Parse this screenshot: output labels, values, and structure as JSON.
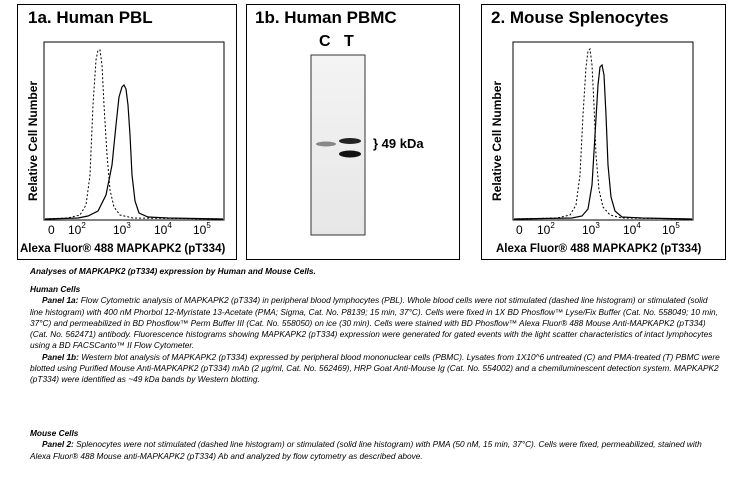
{
  "figure": {
    "panel1a": {
      "title": "1a.  Human PBL",
      "ylabel": "Relative Cell Number",
      "xlabel": "Alexa Fluor® 488 MAPKAPK2 (pT334)",
      "ticks": [
        {
          "base": "0",
          "exp": ""
        },
        {
          "base": "10",
          "exp": "2"
        },
        {
          "base": "10",
          "exp": "3"
        },
        {
          "base": "10",
          "exp": "4"
        },
        {
          "base": "10",
          "exp": "5"
        }
      ]
    },
    "panel1b": {
      "title": "1b. Human PBMC",
      "lane_c": "C",
      "lane_t": "T",
      "band_label": "} 49 kDa"
    },
    "panel2": {
      "title": "2. Mouse Splenocytes",
      "ylabel": "Relative Cell Number",
      "xlabel": "Alexa Fluor® 488 MAPKAPK2 (pT334)",
      "ticks": [
        {
          "base": "0",
          "exp": ""
        },
        {
          "base": "10",
          "exp": "2"
        },
        {
          "base": "10",
          "exp": "3"
        },
        {
          "base": "10",
          "exp": "4"
        },
        {
          "base": "10",
          "exp": "5"
        }
      ]
    }
  },
  "caption": {
    "title": "Analyses of MAPKAPK2 (pT334) expression by Human and Mouse Cells.",
    "human_heading": "Human Cells",
    "panel1a_label": "Panel 1a:",
    "panel1a_text": " Flow Cytometric analysis of MAPKAPK2 (pT334) in peripheral blood lymphocytes (PBL). Whole blood cells were not stimulated (dashed line histogram) or stimulated (solid line histogram) with 400 nM Phorbol 12-Myristate 13-Acetate (PMA; Sigma, Cat. No. P8139; 15 min, 37°C). Cells were fixed in 1X BD Phosflow™ Lyse/Fix Buffer (Cat. No. 558049; 10 min, 37°C) and permeabilized in BD Phosflow™ Perm Buffer III (Cat. No. 558050) on ice (30 min). Cells were stained with BD Phosflow™ Alexa Fluor® 488 Mouse Anti-MAPKAPK2 (pT334) (Cat. No. 562471) antibody. Fluorescence histograms showing MAPKAPK2 (pT334) expression were generated for gated events with the light scatter characteristics of intact lymphocytes using a BD FACSCanto™ II Flow Cytometer.",
    "panel1b_label": "Panel 1b:",
    "panel1b_text": " Western blot analysis of MAPKAPK2 (pT334) expressed by peripheral blood mononuclear cells (PBMC). Lysates from 1X10^6 untreated (C) and PMA-treated (T) PBMC were blotted using Purified Mouse Anti-MAPKAPK2 (pT334) mAb (2 µg/ml, Cat. No. 562469), HRP Goat Anti-Mouse Ig (Cat. No. 554002) and a chemiluminescent detection system. MAPKAPK2 (pT334) were identified as ~49 kDa bands by Western blotting.",
    "mouse_heading": "Mouse Cells",
    "panel2_label": "Panel 2:",
    "panel2_text": " Splenocytes were not stimulated (dashed line histogram) or stimulated (solid line histogram) with PMA (50 nM, 15 min, 37°C). Cells were fixed, permeabilized, stained with Alexa Fluor® 488 Mouse anti-MAPKAPK2 (pT334) Ab and analyzed by flow cytometry as described above."
  }
}
